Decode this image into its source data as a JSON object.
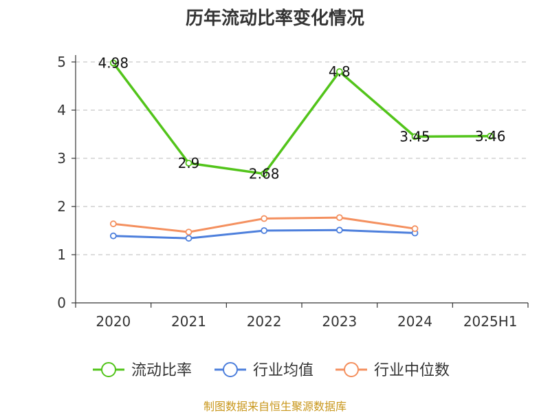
{
  "chart_data": {
    "type": "line",
    "title": "历年流动比率变化情况",
    "categories": [
      "2020",
      "2021",
      "2022",
      "2023",
      "2024",
      "2025H1"
    ],
    "ylim": [
      0,
      5
    ],
    "yticks": [
      0,
      1,
      2,
      3,
      4,
      5
    ],
    "grid": true,
    "legend_placement": "bottom-center",
    "series": [
      {
        "name": "流动比率",
        "color": "#52c41a",
        "values": [
          4.98,
          2.9,
          2.68,
          4.8,
          3.45,
          3.46
        ],
        "labels": [
          "4.98",
          "2.9",
          "2.68",
          "4.8",
          "3.45",
          "3.46"
        ]
      },
      {
        "name": "行业均值",
        "color": "#4d7fdc",
        "values": [
          1.39,
          1.34,
          1.5,
          1.51,
          1.45,
          null
        ]
      },
      {
        "name": "行业中位数",
        "color": "#f4905f",
        "values": [
          1.64,
          1.47,
          1.75,
          1.77,
          1.54,
          null
        ]
      }
    ]
  },
  "source": "制图数据来自恒生聚源数据库"
}
